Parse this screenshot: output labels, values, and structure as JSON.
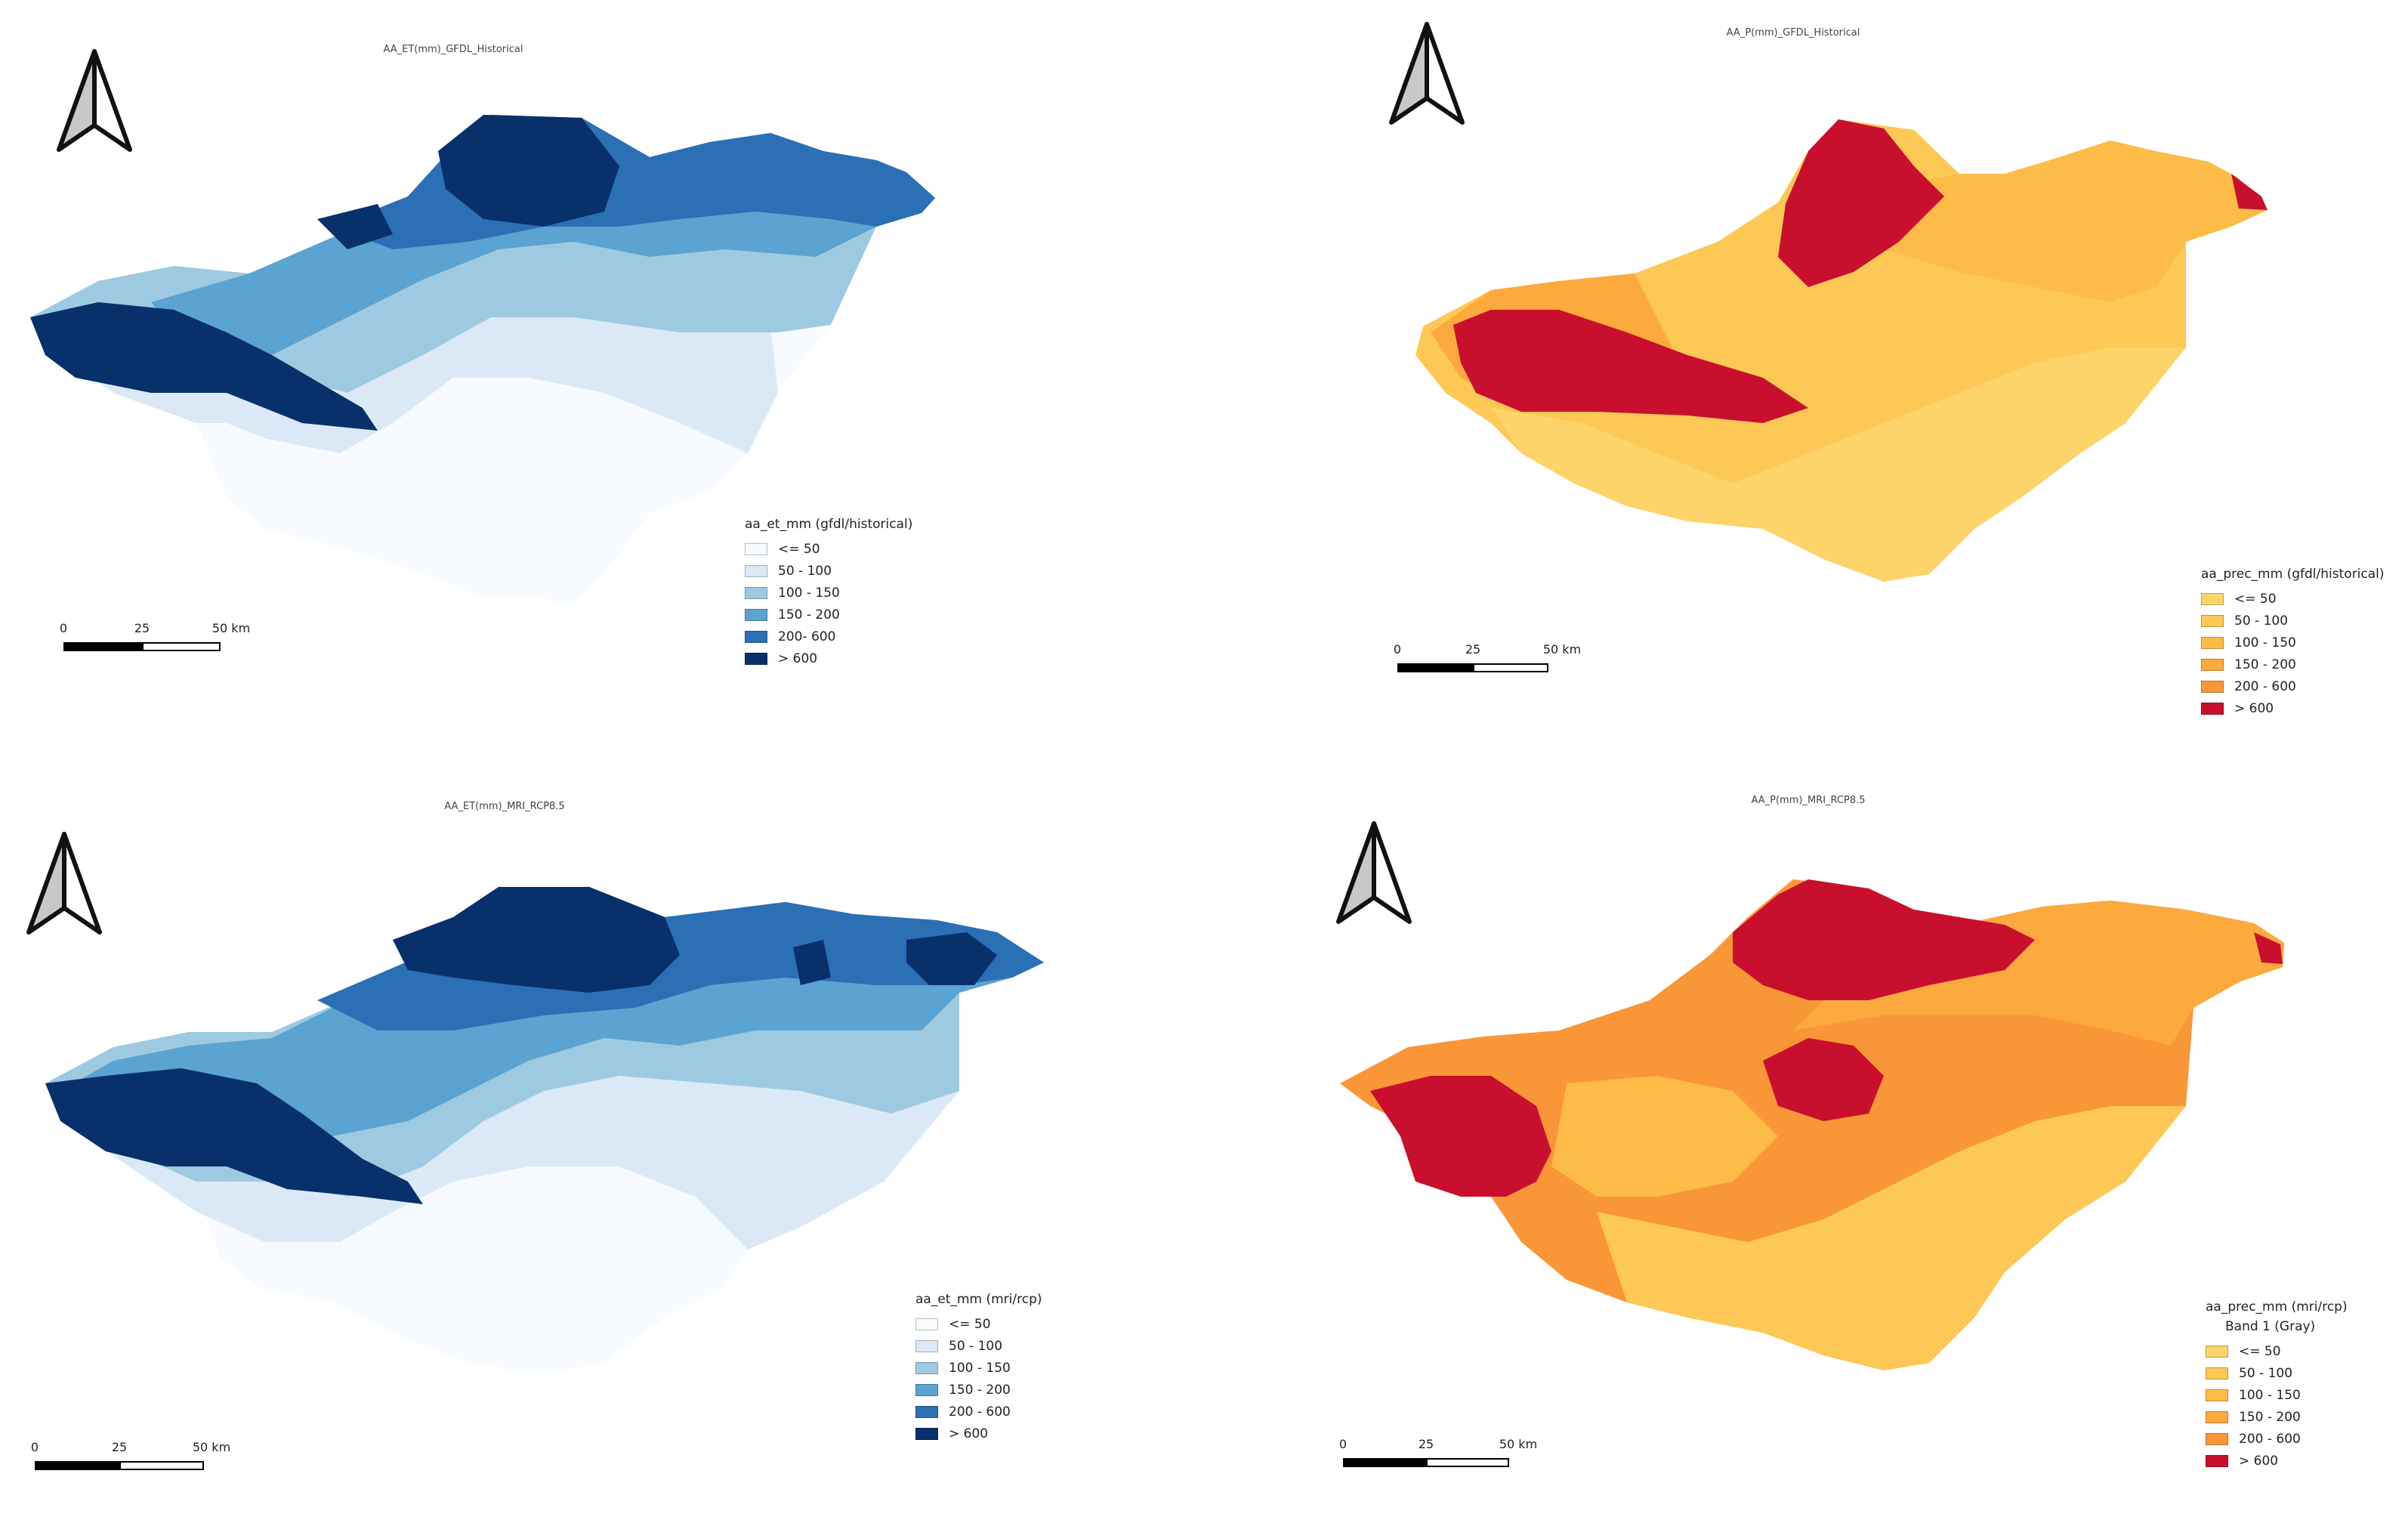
{
  "panels": [
    {
      "id": "et-gfdl-historical",
      "title": "AA_ET(mm)_GFDL_Historical",
      "legend_title": "aa_et_mm (gfdl/historical)",
      "legend_subtitle": null,
      "classes": [
        {
          "label": "<= 50",
          "color": "#f7fbff"
        },
        {
          "label": "50 - 100",
          "color": "#dbe9f6"
        },
        {
          "label": "100 - 150",
          "color": "#9ecae1"
        },
        {
          "label": "150 - 200",
          "color": "#5ba3d0"
        },
        {
          "label": "200- 600",
          "color": "#2b6fb5"
        },
        {
          "label": "> 600",
          "color": "#08306b"
        }
      ],
      "scale": {
        "labels": [
          "0",
          "25",
          "50 km"
        ]
      }
    },
    {
      "id": "p-gfdl-historical",
      "title": "AA_P(mm)_GFDL_Historical",
      "legend_title": "aa_prec_mm (gfdl/historical)",
      "legend_subtitle": null,
      "classes": [
        {
          "label": "<= 50",
          "color": "#fdd46a"
        },
        {
          "label": "50 - 100",
          "color": "#fdc855"
        },
        {
          "label": "100 - 150",
          "color": "#fdbb48"
        },
        {
          "label": "150 - 200",
          "color": "#fca93e"
        },
        {
          "label": "200 - 600",
          "color": "#f99637"
        },
        {
          "label": "> 600",
          "color": "#c8102e"
        }
      ],
      "scale": {
        "labels": [
          "0",
          "25",
          "50 km"
        ]
      }
    },
    {
      "id": "et-mri-rcp85",
      "title": "AA_ET(mm)_MRI_RCP8.5",
      "legend_title": "aa_et_mm (mri/rcp)",
      "legend_subtitle": null,
      "classes": [
        {
          "label": "<= 50",
          "color": "#f7fbff"
        },
        {
          "label": "50 - 100",
          "color": "#dbe9f6"
        },
        {
          "label": "100 - 150",
          "color": "#9ecae1"
        },
        {
          "label": "150 - 200",
          "color": "#5ba3d0"
        },
        {
          "label": "200 - 600",
          "color": "#2b6fb5"
        },
        {
          "label": "> 600",
          "color": "#08306b"
        }
      ],
      "scale": {
        "labels": [
          "0",
          "25",
          "50 km"
        ]
      }
    },
    {
      "id": "p-mri-rcp85",
      "title": "AA_P(mm)_MRI_RCP8.5",
      "legend_title": "aa_prec_mm (mri/rcp)",
      "legend_subtitle": "Band 1 (Gray)",
      "classes": [
        {
          "label": "<= 50",
          "color": "#fdd46a"
        },
        {
          "label": "50 - 100",
          "color": "#fdc855"
        },
        {
          "label": "100 - 150",
          "color": "#fdbb48"
        },
        {
          "label": "150 - 200",
          "color": "#fca93e"
        },
        {
          "label": "200 - 600",
          "color": "#f99637"
        },
        {
          "label": "> 600",
          "color": "#c8102e"
        }
      ],
      "scale": {
        "labels": [
          "0",
          "25",
          "50 km"
        ]
      }
    }
  ]
}
